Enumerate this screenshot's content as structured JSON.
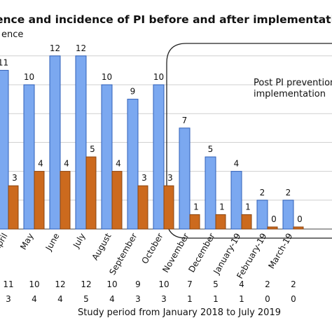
{
  "chart_data": {
    "type": "bar",
    "title": "ence and incidence of PI before and after implementation of the PI preve",
    "ylabel": "ence",
    "xlabel": "Study period from January 2018 to July 2019",
    "ylim": [
      0,
      13
    ],
    "grid": true,
    "categories": [
      "April",
      "May",
      "June",
      "July",
      "August",
      "September",
      "October",
      "November",
      "December",
      "January-19",
      "February-19",
      "March-19"
    ],
    "series": [
      {
        "values": [
          11,
          10,
          12,
          12,
          10,
          9,
          10,
          7,
          5,
          4,
          2,
          2
        ]
      },
      {
        "values": [
          3,
          4,
          4,
          5,
          4,
          3,
          3,
          1,
          1,
          1,
          0,
          0
        ]
      }
    ],
    "annotation": "Post PI prevention\nimplementation",
    "table_rows": [
      [
        "11",
        "10",
        "12",
        "12",
        "10",
        "9",
        "10",
        "7",
        "5",
        "4",
        "2",
        "2"
      ],
      [
        "3",
        "4",
        "4",
        "5",
        "4",
        "3",
        "3",
        "1",
        "1",
        "1",
        "0",
        "0"
      ]
    ],
    "colors": {
      "series1": "#7ba8f0",
      "series1_stroke": "#2f5fb8",
      "series2": "#cc6a1e",
      "series2_stroke": "#8a4410",
      "grid": "#cfcfcf",
      "frame": "#222222"
    }
  }
}
